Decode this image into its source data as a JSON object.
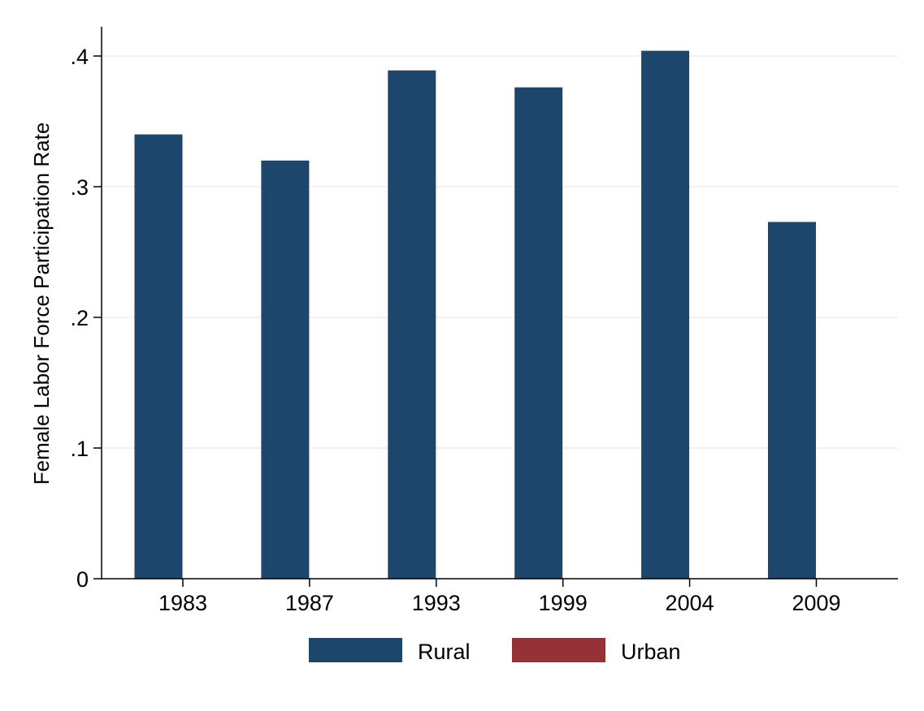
{
  "chart_data": {
    "type": "bar",
    "title": "",
    "xlabel": "",
    "ylabel": "Female Labor Force Participation Rate",
    "categories": [
      "1983",
      "1987",
      "1993",
      "1999",
      "2004",
      "2009"
    ],
    "series": [
      {
        "name": "Rural",
        "color": "#1c466c",
        "values": [
          0.34,
          0.32,
          0.389,
          0.376,
          0.404,
          0.273
        ]
      },
      {
        "name": "Urban",
        "color": "#943237",
        "values": [
          null,
          null,
          null,
          null,
          null,
          null
        ]
      }
    ],
    "ylim": [
      0,
      0.42
    ],
    "yticks": [
      0,
      0.1,
      0.2,
      0.3,
      0.4
    ],
    "ytick_labels": [
      "0",
      ".1",
      ".2",
      ".3",
      ".4"
    ],
    "grid": true,
    "gridline_color": "#e6eef2",
    "legend_position": "bottom"
  }
}
